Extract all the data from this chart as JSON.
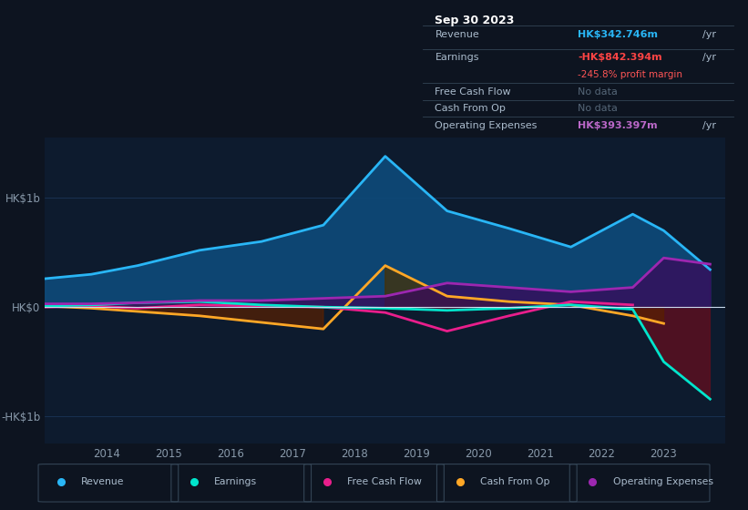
{
  "bg_color": "#0d1420",
  "plot_bg_color": "#0d1b2e",
  "ylabel_top": "HK$1b",
  "ylabel_bottom": "-HK$1b",
  "ylabel_mid": "HK$0",
  "years": [
    2013.0,
    2013.75,
    2014.5,
    2015.5,
    2016.5,
    2017.5,
    2018.5,
    2019.5,
    2020.5,
    2021.5,
    2022.5,
    2023.0,
    2023.75
  ],
  "revenue": [
    0.26,
    0.3,
    0.38,
    0.52,
    0.6,
    0.75,
    1.38,
    0.88,
    0.72,
    0.55,
    0.85,
    0.7,
    0.343
  ],
  "earnings": [
    0.01,
    0.02,
    0.04,
    0.05,
    0.02,
    0.0,
    -0.01,
    -0.03,
    -0.01,
    0.02,
    -0.02,
    -0.5,
    -0.842
  ],
  "free_cash_flow": [
    0.0,
    0.01,
    -0.01,
    0.02,
    0.01,
    0.0,
    -0.05,
    -0.22,
    -0.08,
    0.05,
    0.02,
    null,
    null
  ],
  "cash_from_op": [
    0.01,
    -0.01,
    -0.04,
    -0.08,
    -0.14,
    -0.2,
    0.38,
    0.1,
    0.05,
    0.02,
    -0.08,
    -0.15,
    null
  ],
  "operating_expenses": [
    0.03,
    0.03,
    0.04,
    0.06,
    0.06,
    0.08,
    0.1,
    0.22,
    0.18,
    0.14,
    0.18,
    0.45,
    0.393
  ],
  "revenue_color": "#29b6f6",
  "revenue_fill": "#0d4a7a",
  "earnings_color": "#00e5cc",
  "earnings_fill_pos": "#1a5c50",
  "earnings_fill_neg": "#5a1020",
  "free_cash_flow_color": "#e91e8c",
  "cash_from_op_color": "#ffa726",
  "cash_from_op_fill_pos": "#4a3000",
  "cash_from_op_fill_neg": "#5a2000",
  "operating_expenses_color": "#9c27b0",
  "operating_expenses_fill": "#3a0a5a",
  "zero_line_color": "#ccddee",
  "grid_color": "#1e3a5f",
  "text_color": "#8899aa",
  "info_box": {
    "title": "Sep 30 2023",
    "revenue_label": "Revenue",
    "revenue_value": "HK$342.746m",
    "revenue_color": "#29b6f6",
    "revenue_suffix": "/yr",
    "earnings_label": "Earnings",
    "earnings_value": "-HK$842.394m",
    "earnings_color": "#ff4444",
    "earnings_suffix": "/yr",
    "profit_margin": "-245.8% profit margin",
    "profit_margin_color": "#ff5555",
    "fcf_label": "Free Cash Flow",
    "fcf_value": "No data",
    "cfop_label": "Cash From Op",
    "cfop_value": "No data",
    "opex_label": "Operating Expenses",
    "opex_value": "HK$393.397m",
    "opex_color": "#ba68c8",
    "opex_suffix": "/yr",
    "no_data_color": "#556677"
  },
  "legend": [
    {
      "label": "Revenue",
      "color": "#29b6f6"
    },
    {
      "label": "Earnings",
      "color": "#00e5cc"
    },
    {
      "label": "Free Cash Flow",
      "color": "#e91e8c"
    },
    {
      "label": "Cash From Op",
      "color": "#ffa726"
    },
    {
      "label": "Operating Expenses",
      "color": "#9c27b0"
    }
  ]
}
